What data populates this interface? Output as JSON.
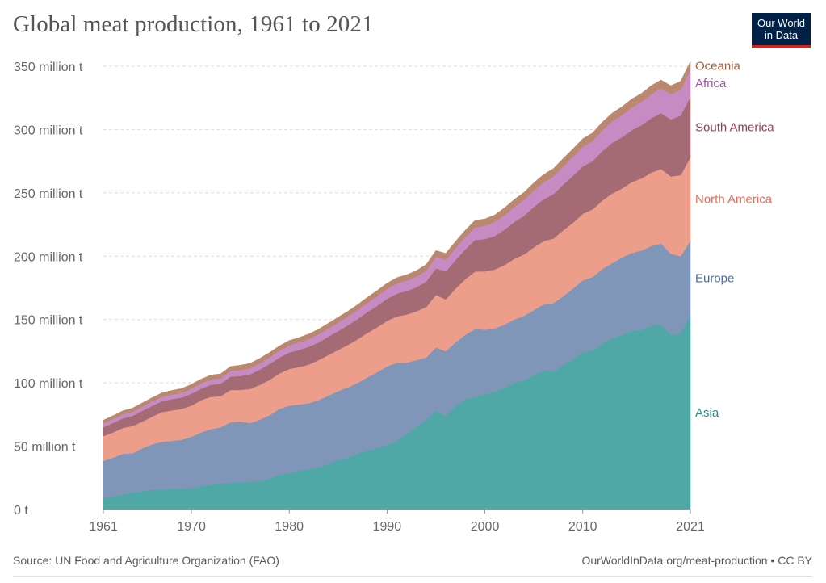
{
  "title": "Global meat production, 1961 to 2021",
  "logo": {
    "line1": "Our World",
    "line2": "in Data"
  },
  "source_text": "Source: UN Food and Agriculture Organization (FAO)",
  "url_text": "OurWorldInData.org/meat-production • CC BY",
  "chart_data": {
    "type": "area",
    "stacked": true,
    "unit": "million t",
    "ylim": [
      0,
      350
    ],
    "y_ticks": [
      0,
      50,
      100,
      150,
      200,
      250,
      300,
      350
    ],
    "y_tick_labels": [
      "0 t",
      "50 million t",
      "100 million t",
      "150 million t",
      "200 million t",
      "250 million t",
      "300 million t",
      "350 million t"
    ],
    "x_ticks": [
      1961,
      1970,
      1980,
      1990,
      2000,
      2010,
      2021
    ],
    "x_tick_labels": [
      "1961",
      "1970",
      "1980",
      "1990",
      "2000",
      "2010",
      "2021"
    ],
    "grid": "horizontal dashed",
    "legend": "labels at right end of each series",
    "x": [
      1961,
      1962,
      1963,
      1964,
      1965,
      1966,
      1967,
      1968,
      1969,
      1970,
      1971,
      1972,
      1973,
      1974,
      1975,
      1976,
      1977,
      1978,
      1979,
      1980,
      1981,
      1982,
      1983,
      1984,
      1985,
      1986,
      1987,
      1988,
      1989,
      1990,
      1991,
      1992,
      1993,
      1994,
      1995,
      1996,
      1997,
      1998,
      1999,
      2000,
      2001,
      2002,
      2003,
      2004,
      2005,
      2006,
      2007,
      2008,
      2009,
      2010,
      2011,
      2012,
      2013,
      2014,
      2015,
      2016,
      2017,
      2018,
      2019,
      2020,
      2021
    ],
    "series": [
      {
        "name": "Asia",
        "color": "#4fa8a6",
        "label_color": "#2b8a86",
        "values": [
          9,
          10,
          12,
          13.5,
          14.5,
          15.5,
          16,
          16.2,
          16.5,
          17,
          18.5,
          19.5,
          20.5,
          21,
          21.5,
          21.8,
          22.5,
          24.5,
          27.5,
          29,
          30.5,
          32,
          33.5,
          36,
          39,
          41,
          44,
          46.5,
          48.5,
          51,
          54,
          60,
          65,
          71,
          78,
          74,
          82,
          87,
          89,
          91,
          93,
          96,
          100,
          102,
          106,
          110,
          109,
          114,
          119,
          124,
          126,
          131,
          135,
          138,
          141,
          141.5,
          145,
          146,
          138,
          139,
          153
        ]
      },
      {
        "name": "Europe",
        "color": "#7f96b9",
        "label_color": "#4c6a9c",
        "values": [
          29.5,
          31,
          32,
          31,
          34,
          36,
          37.5,
          38,
          38.5,
          40.5,
          42.5,
          44,
          44.5,
          48,
          48,
          46.5,
          48.5,
          50,
          52,
          53,
          52.5,
          52,
          53,
          54,
          54.5,
          55.5,
          56,
          58,
          60,
          62,
          62,
          56,
          53,
          49,
          50,
          51,
          50,
          51,
          53.5,
          51,
          50,
          50,
          50,
          51,
          51.5,
          52,
          54,
          54.5,
          55.5,
          57,
          57.5,
          59,
          59.5,
          61,
          61.5,
          63,
          63,
          64,
          64,
          61,
          59
        ]
      },
      {
        "name": "North America",
        "color": "#ec9e8a",
        "label_color": "#e56e5a",
        "values": [
          19.5,
          20,
          20.5,
          21.5,
          21,
          22,
          23.5,
          24,
          24.5,
          24.5,
          25.5,
          25.5,
          24.5,
          25.5,
          25,
          27,
          27.5,
          28,
          28,
          29,
          29.5,
          30.5,
          31.5,
          32,
          32.5,
          33.5,
          34.5,
          35,
          35.5,
          36,
          36.5,
          38,
          38.5,
          40,
          41.5,
          41,
          42.5,
          44,
          45.5,
          46,
          46.5,
          47,
          48,
          48.5,
          49.5,
          50,
          51,
          52,
          52,
          52.5,
          53.5,
          54,
          55,
          54.5,
          56,
          57,
          58,
          59,
          61,
          64,
          66
        ]
      },
      {
        "name": "South America",
        "color": "#a46b75",
        "label_color": "#9a3b4a",
        "values": [
          7,
          7.5,
          7.5,
          8,
          8.5,
          8.5,
          8.5,
          9,
          9,
          9.5,
          9,
          9.5,
          10,
          10.5,
          11,
          11.5,
          12,
          12.5,
          12.5,
          13,
          13.5,
          14,
          14,
          14.5,
          15,
          15.5,
          16,
          16.5,
          17,
          17.5,
          18,
          18.5,
          19,
          20,
          21,
          22,
          22.5,
          23.5,
          25,
          25.5,
          26.5,
          28,
          29,
          30.5,
          32,
          33,
          35,
          36,
          37,
          37.5,
          38,
          39,
          40,
          40.5,
          41,
          42,
          43,
          44,
          45,
          47,
          48
        ]
      },
      {
        "name": "Africa",
        "color": "#c78bc4",
        "label_color": "#a256a6",
        "values": [
          3,
          3,
          3.2,
          3.3,
          3.4,
          3.5,
          3.6,
          3.7,
          3.8,
          4,
          4.1,
          4.2,
          4.3,
          4.5,
          4.7,
          4.8,
          5,
          5.2,
          5.5,
          5.7,
          6,
          6.2,
          6.4,
          6.6,
          6.8,
          7,
          7.2,
          7.4,
          7.6,
          7.8,
          8,
          8.2,
          8.4,
          8.6,
          9,
          9.2,
          9.5,
          9.8,
          10,
          10.5,
          11,
          11.5,
          12,
          12.5,
          13,
          13.5,
          14,
          14.5,
          15,
          15.5,
          16,
          16.5,
          17,
          17.5,
          18,
          18.5,
          19,
          19.5,
          20,
          20.5,
          21
        ]
      },
      {
        "name": "Oceania",
        "color": "#b9886e",
        "label_color": "#a55f38",
        "values": [
          2.5,
          2.6,
          2.7,
          2.8,
          2.8,
          2.9,
          3,
          3.1,
          3.2,
          3.3,
          3.4,
          3.5,
          3.3,
          3.5,
          3.7,
          3.8,
          3.9,
          3.8,
          3.7,
          3.7,
          3.8,
          3.9,
          3.9,
          3.9,
          4,
          4,
          4.1,
          4.2,
          4.3,
          4.4,
          4.5,
          4.6,
          4.7,
          4.8,
          4.9,
          5,
          5.1,
          5.2,
          5.3,
          5.4,
          5.5,
          5.6,
          5.7,
          5.8,
          5.9,
          6,
          6.1,
          6.1,
          6.2,
          6.2,
          6.3,
          6.3,
          6.4,
          6.4,
          6.5,
          6.5,
          6.6,
          6.6,
          6.6,
          6.5,
          6.6
        ]
      }
    ]
  }
}
